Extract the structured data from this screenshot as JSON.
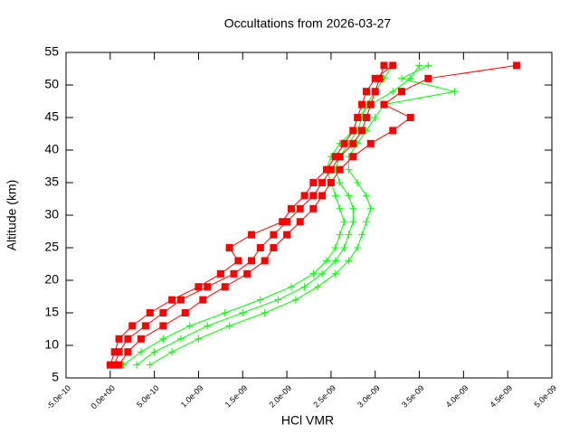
{
  "chart_data": {
    "type": "line",
    "title": "Occultations from 2026-03-27",
    "x_label": "HCl VMR",
    "y_label": "Altitude (km)",
    "xlim": [
      -5e-10,
      5e-09
    ],
    "ylim": [
      5,
      55
    ],
    "xticks": [
      {
        "value": -5e-10,
        "label": "-5.0e-10"
      },
      {
        "value": 0,
        "label": "0.0e+00"
      },
      {
        "value": 5e-10,
        "label": "5.0e-10"
      },
      {
        "value": 1e-09,
        "label": "1.0e-09"
      },
      {
        "value": 1.5e-09,
        "label": "1.5e-09"
      },
      {
        "value": 2e-09,
        "label": "2.0e-09"
      },
      {
        "value": 2.5e-09,
        "label": "2.5e-09"
      },
      {
        "value": 3e-09,
        "label": "3.0e-09"
      },
      {
        "value": 3.5e-09,
        "label": "3.5e-09"
      },
      {
        "value": 4e-09,
        "label": "4.0e-09"
      },
      {
        "value": 4.5e-09,
        "label": "4.5e-09"
      },
      {
        "value": 5e-09,
        "label": "5.0e-09"
      }
    ],
    "yticks": [
      5,
      10,
      15,
      20,
      25,
      30,
      35,
      40,
      45,
      50,
      55
    ],
    "y": [
      7,
      9,
      11,
      13,
      15,
      17,
      19,
      21,
      23,
      25,
      27,
      29,
      31,
      33,
      35,
      37,
      39,
      41,
      43,
      45,
      47,
      49,
      51,
      53
    ],
    "series": [
      {
        "color": "#00ff00",
        "marker": "plus",
        "x": [
          3e-10,
          5e-10,
          8e-10,
          1.1e-09,
          1.5e-09,
          1.9e-09,
          2.2e-09,
          2.4e-09,
          2.55e-09,
          2.65e-09,
          2.7e-09,
          2.75e-09,
          2.75e-09,
          2.7e-09,
          2.6e-09,
          2.55e-09,
          2.6e-09,
          2.7e-09,
          2.8e-09,
          2.85e-09,
          2.9e-09,
          3e-09,
          3.1e-09,
          3.2e-09
        ]
      },
      {
        "color": "#00ff00",
        "marker": "plus",
        "x": [
          1.5e-10,
          3.5e-10,
          6e-10,
          9e-10,
          1.3e-09,
          1.7e-09,
          2.05e-09,
          2.3e-09,
          2.45e-09,
          2.55e-09,
          2.6e-09,
          2.65e-09,
          2.6e-09,
          2.55e-09,
          2.5e-09,
          2.45e-09,
          2.5e-09,
          2.6e-09,
          2.75e-09,
          2.8e-09,
          2.95e-09,
          3.2e-09,
          3.4e-09,
          3.5e-09
        ]
      },
      {
        "color": "#00ff00",
        "marker": "plus",
        "x": [
          4.5e-10,
          7e-10,
          1e-09,
          1.35e-09,
          1.75e-09,
          2.1e-09,
          2.35e-09,
          2.55e-09,
          2.7e-09,
          2.8e-09,
          2.85e-09,
          2.9e-09,
          2.95e-09,
          2.9e-09,
          2.8e-09,
          2.7e-09,
          2.7e-09,
          2.8e-09,
          2.9e-09,
          3e-09,
          3.1e-09,
          3.9e-09,
          3.3e-09,
          3.6e-09
        ]
      },
      {
        "color": "#ff0000",
        "marker": "square",
        "x": [
          5e-11,
          1e-10,
          2e-10,
          4e-10,
          6e-10,
          8e-10,
          1.1e-09,
          1.4e-09,
          1.6e-09,
          1.7e-09,
          1.85e-09,
          2e-09,
          2.15e-09,
          2.3e-09,
          2.4e-09,
          2.5e-09,
          2.6e-09,
          2.75e-09,
          2.85e-09,
          2.9e-09,
          2.95e-09,
          3e-09,
          3.05e-09,
          3.1e-09
        ]
      },
      {
        "color": "#ff0000",
        "marker": "square",
        "x": [
          0,
          5e-11,
          1e-10,
          2.5e-10,
          4.5e-10,
          7e-10,
          1e-09,
          1.25e-09,
          1.45e-09,
          1.35e-09,
          1.6e-09,
          1.95e-09,
          2.05e-09,
          2.2e-09,
          2.3e-09,
          2.45e-09,
          2.55e-09,
          2.65e-09,
          2.75e-09,
          2.8e-09,
          2.85e-09,
          2.9e-09,
          3e-09,
          3.2e-09
        ]
      },
      {
        "color": "#ff0000",
        "marker": "square",
        "x": [
          1e-10,
          2e-10,
          3.5e-10,
          6e-10,
          8.5e-10,
          1.05e-09,
          1.3e-09,
          1.55e-09,
          1.75e-09,
          1.85e-09,
          2e-09,
          2.15e-09,
          2.3e-09,
          2.4e-09,
          2.5e-09,
          2.6e-09,
          2.75e-09,
          2.95e-09,
          3.2e-09,
          3.4e-09,
          3.1e-09,
          3.3e-09,
          3.6e-09,
          4.6e-09
        ]
      }
    ]
  }
}
